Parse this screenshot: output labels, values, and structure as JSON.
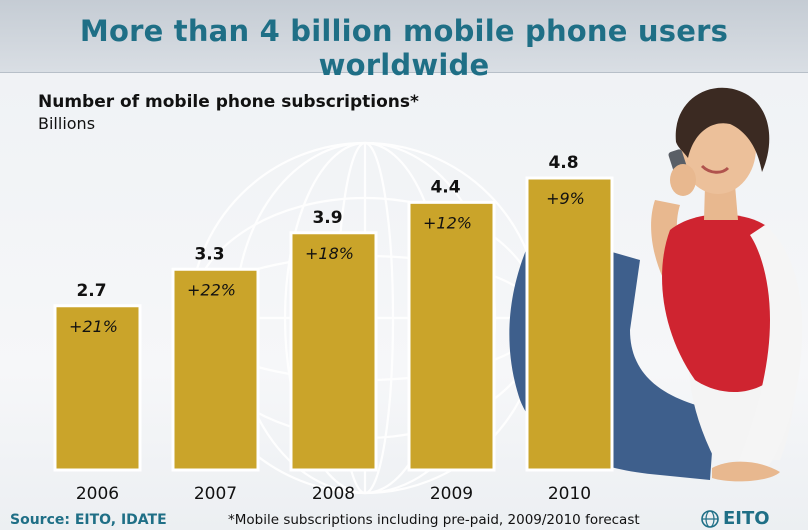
{
  "title": "More than 4 billion mobile phone users worldwide",
  "subtitle": "Number of mobile phone subscriptions*",
  "unit": "Billions",
  "source": "Source: EITO, IDATE",
  "footnote": "*Mobile subscriptions including pre-paid, 2009/2010 forecast",
  "logo_text": "EITO",
  "colors": {
    "bar_fill": "#caa42a",
    "bar_border": "#ffffff",
    "title": "#1f6f86",
    "background": "#eef1f4"
  },
  "chart_data": {
    "type": "bar",
    "title": "Number of mobile phone subscriptions*",
    "ylabel": "Billions",
    "xlabel": "",
    "categories": [
      "2006",
      "2007",
      "2008",
      "2009",
      "2010"
    ],
    "values": [
      2.7,
      3.3,
      3.9,
      4.4,
      4.8
    ],
    "value_labels": [
      "2.7",
      "3.3",
      "3.9",
      "4.4",
      "4.8"
    ],
    "growth_labels": [
      "+21%",
      "+22%",
      "+18%",
      "+12%",
      "+9%"
    ],
    "ylim": [
      0,
      4.8
    ],
    "grid": false,
    "legend": "none"
  }
}
